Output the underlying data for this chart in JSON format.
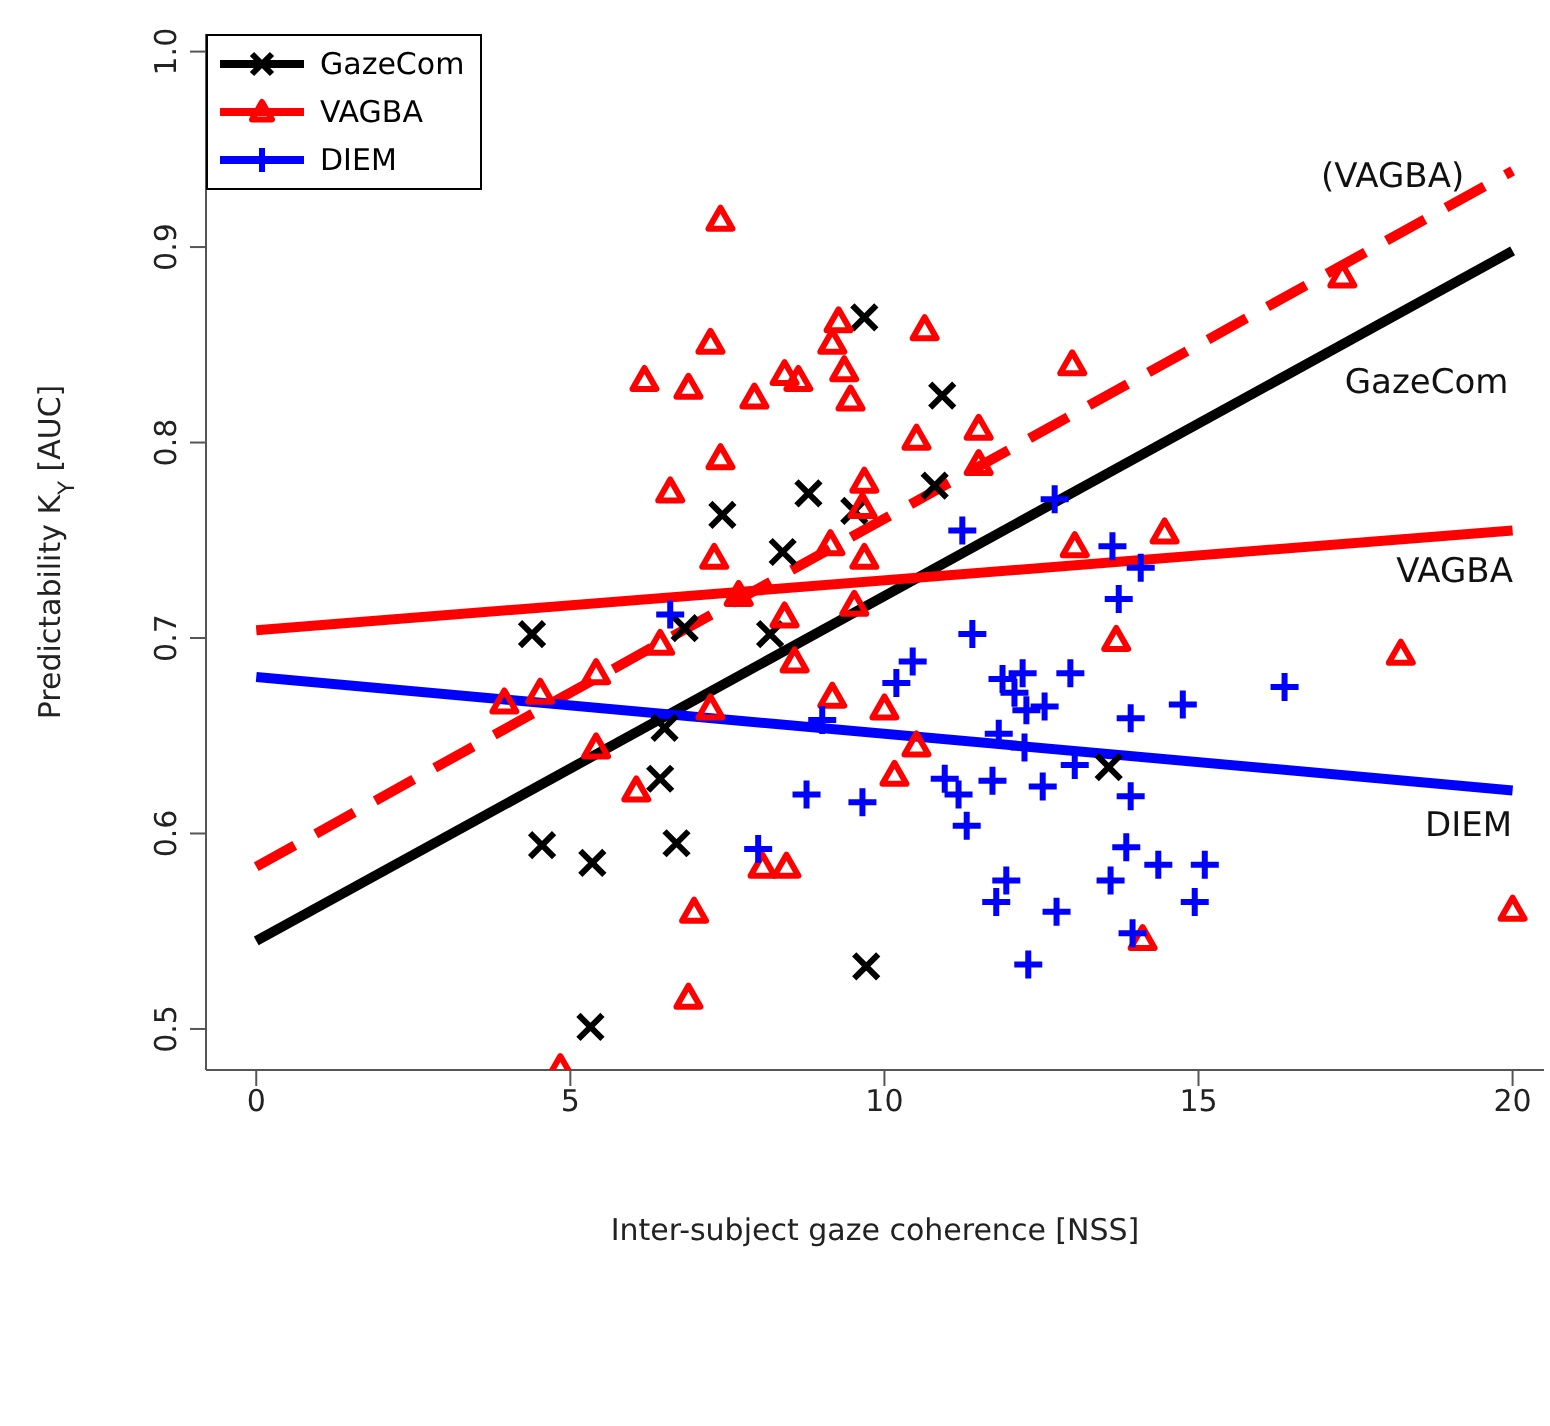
{
  "chart_data": {
    "type": "scatter",
    "xlabel": "Inter-subject gaze coherence [NSS]",
    "ylabel": "Predictability K$_{Y}$ [AUC]",
    "xlim": [
      -0.8,
      20.5
    ],
    "ylim": [
      0.479,
      1.009
    ],
    "xticks": [
      0,
      5,
      10,
      15,
      20
    ],
    "yticks": [
      0.5,
      0.6,
      0.7,
      0.8,
      0.9,
      {
        "value": 1,
        "label": "1.0"
      }
    ],
    "grid": false,
    "legend": "top left",
    "series": [
      {
        "name": "GazeCom",
        "marker": "x",
        "color": "#000000",
        "x": [
          9.68,
          8.79,
          7.42,
          8.38,
          9.52,
          4.39,
          6.82,
          8.18,
          10.92,
          10.8,
          6.5,
          6.43,
          4.55,
          5.35,
          6.69,
          9.71,
          5.32,
          13.57
        ],
        "values": [
          0.864,
          0.774,
          0.763,
          0.744,
          0.765,
          0.702,
          0.705,
          0.702,
          0.824,
          0.778,
          0.654,
          0.628,
          0.594,
          0.585,
          0.595,
          0.532,
          0.501,
          0.634
        ]
      },
      {
        "name": "VAGBA",
        "marker": "triangle",
        "color": "#ff0000",
        "x": [
          7.39,
          7.23,
          6.18,
          6.88,
          7.93,
          8.41,
          8.63,
          9.27,
          9.17,
          9.36,
          9.46,
          7.39,
          6.59,
          9.68,
          9.65,
          7.29,
          9.14,
          9.68,
          7.68,
          8.41,
          9.52,
          6.43,
          10.64,
          12.99,
          11.5,
          10.51,
          11.5,
          17.29,
          13.03,
          14.46,
          13.69,
          18.22,
          3.95,
          4.52,
          5.41,
          8.57,
          9.17,
          7.23,
          5.41,
          6.05,
          8.06,
          8.44,
          6.97,
          6.88,
          4.84,
          10.0,
          10.51,
          10.16,
          14.11,
          20.0
        ],
        "values": [
          0.914,
          0.851,
          0.832,
          0.828,
          0.823,
          0.835,
          0.832,
          0.862,
          0.851,
          0.837,
          0.822,
          0.792,
          0.775,
          0.78,
          0.767,
          0.741,
          0.748,
          0.741,
          0.722,
          0.711,
          0.717,
          0.697,
          0.858,
          0.84,
          0.807,
          0.802,
          0.789,
          0.885,
          0.747,
          0.754,
          0.699,
          0.692,
          0.667,
          0.672,
          0.682,
          0.688,
          0.67,
          0.664,
          0.644,
          0.622,
          0.583,
          0.583,
          0.56,
          0.516,
          0.48,
          0.664,
          0.645,
          0.63,
          0.546,
          0.561
        ]
      },
      {
        "name": "DIEM",
        "marker": "cross",
        "color": "#0000ff",
        "x": [
          6.59,
          9.01,
          8.76,
          9.65,
          7.99,
          12.71,
          11.24,
          13.63,
          14.08,
          13.73,
          11.4,
          10.45,
          10.19,
          11.88,
          12.2,
          12.96,
          12.07,
          12.26,
          12.55,
          13.92,
          14.75,
          16.37,
          11.82,
          12.23,
          13.03,
          10.96,
          11.18,
          11.72,
          12.52,
          13.92,
          11.31,
          13.85,
          14.36,
          15.1,
          13.6,
          11.94,
          11.78,
          12.74,
          14.94,
          13.95,
          12.29
        ],
        "values": [
          0.712,
          0.658,
          0.62,
          0.616,
          0.592,
          0.771,
          0.755,
          0.747,
          0.736,
          0.72,
          0.702,
          0.688,
          0.677,
          0.679,
          0.682,
          0.682,
          0.672,
          0.663,
          0.665,
          0.659,
          0.666,
          0.675,
          0.651,
          0.644,
          0.635,
          0.628,
          0.62,
          0.627,
          0.624,
          0.619,
          0.604,
          0.593,
          0.584,
          0.584,
          0.576,
          0.576,
          0.565,
          0.56,
          0.565,
          0.549,
          0.533
        ]
      },
      {
        "type": "line",
        "marker": "none",
        "line_style": "dashed",
        "color": "#ff0000",
        "x": [
          0,
          20
        ],
        "values": [
          0.583,
          0.939
        ]
      },
      {
        "type": "line",
        "marker": "none",
        "line_style": "solid",
        "color": "#000000",
        "x": [
          0,
          20
        ],
        "values": [
          0.545,
          0.898
        ]
      },
      {
        "type": "line",
        "marker": "none",
        "line_style": "solid",
        "color": "#ff0000",
        "x": [
          0,
          20
        ],
        "values": [
          0.704,
          0.755
        ]
      },
      {
        "type": "line",
        "marker": "none",
        "line_style": "solid",
        "color": "#0000ff",
        "x": [
          0,
          20
        ],
        "values": [
          0.68,
          0.622
        ]
      }
    ],
    "annotations": [
      "(VAGBA)",
      "GazeCom",
      "VAGBA",
      "DIEM"
    ]
  }
}
